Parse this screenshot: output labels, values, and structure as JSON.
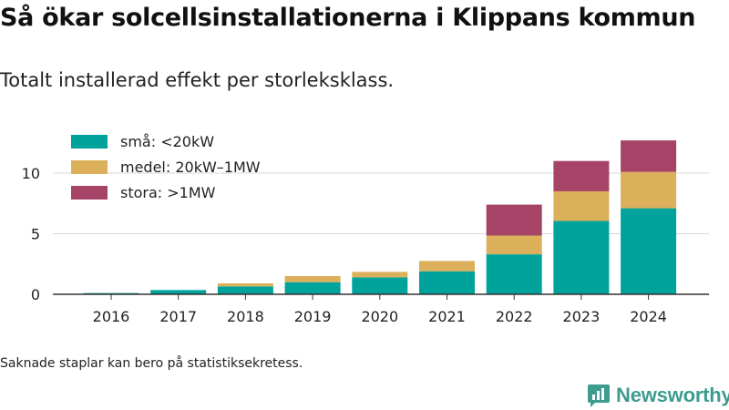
{
  "title": "Så ökar solcellsinstallationerna i Klippans kommun",
  "subtitle": "Totalt installerad effekt per storleksklass.",
  "note": "Saknade staplar kan bero på statistiksekretess.",
  "brand": {
    "name": "Newsworthy",
    "icon": "newsworthy-logo-icon"
  },
  "colors": {
    "accent": "#3d9c8e"
  },
  "chart_data": {
    "type": "bar",
    "stacked": true,
    "categories": [
      "2016",
      "2017",
      "2018",
      "2019",
      "2020",
      "2021",
      "2022",
      "2023",
      "2024"
    ],
    "series": [
      {
        "name": "små: <20kW",
        "color": "#00a39b",
        "values": [
          0.1,
          0.35,
          0.65,
          1.0,
          1.4,
          1.9,
          3.3,
          6.05,
          7.1
        ]
      },
      {
        "name": "medel: 20kW–1MW",
        "color": "#dcaf5a",
        "values": [
          0.0,
          0.0,
          0.25,
          0.5,
          0.45,
          0.85,
          1.55,
          2.45,
          3.0
        ]
      },
      {
        "name": "stora: >1MW",
        "color": "#a64468",
        "values": [
          0.0,
          0.0,
          0.0,
          0.0,
          0.0,
          0.0,
          2.55,
          2.5,
          2.6
        ]
      }
    ],
    "yticks": [
      0,
      5,
      10
    ],
    "ylim": [
      0,
      13
    ],
    "grid": true,
    "legend_position": "top-left",
    "xlabel": "",
    "ylabel": ""
  }
}
